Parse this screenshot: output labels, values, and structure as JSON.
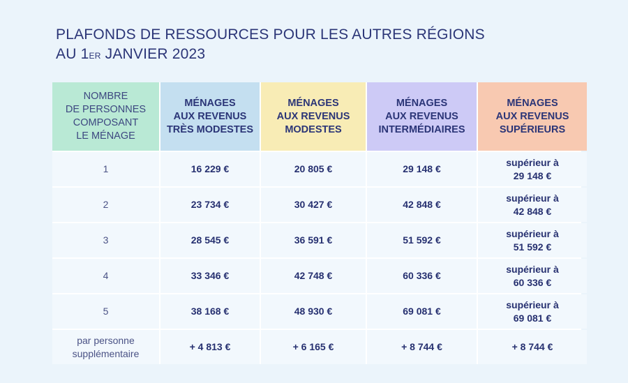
{
  "title": {
    "line1": "PLAFONDS DE RESSOURCES POUR LES AUTRES RÉGIONS",
    "line2_prefix": "AU 1",
    "line2_sup": "ER",
    "line2_suffix": " JANVIER 2023"
  },
  "table": {
    "headers": [
      "NOMBRE\nDE PERSONNES\nCOMPOSANT\nLE MÉNAGE",
      "MÉNAGES\nAUX REVENUS\nTRÈS MODESTES",
      "MÉNAGES\nAUX REVENUS\nMODESTES",
      "MÉNAGES\nAUX REVENUS\nINTERMÉDIAIRES",
      "MÉNAGES\nAUX REVENUS\nSUPÉRIEURS"
    ],
    "rows": [
      [
        "1",
        "16 229 €",
        "20 805 €",
        "29 148 €",
        "supérieur à\n29 148 €"
      ],
      [
        "2",
        "23 734 €",
        "30 427 €",
        "42 848 €",
        "supérieur à\n42 848 €"
      ],
      [
        "3",
        "28 545 €",
        "36 591 €",
        "51 592 €",
        "supérieur à\n51 592 €"
      ],
      [
        "4",
        "33 346 €",
        "42 748 €",
        "60 336 €",
        "supérieur à\n60 336 €"
      ],
      [
        "5",
        "38 168 €",
        "48 930 €",
        "69 081 €",
        "supérieur à\n69 081 €"
      ],
      [
        "par personne\nsupplémentaire",
        "+ 4 813 €",
        "+ 6 165 €",
        "+ 8 744 €",
        "+ 8 744 €"
      ]
    ]
  },
  "colors": {
    "text": "#263070",
    "green": "#b9e9d5",
    "blue": "#c4dff0",
    "yellow": "#f8ecb5",
    "purple": "#cdcaf6",
    "orange": "#f8c9b1"
  }
}
